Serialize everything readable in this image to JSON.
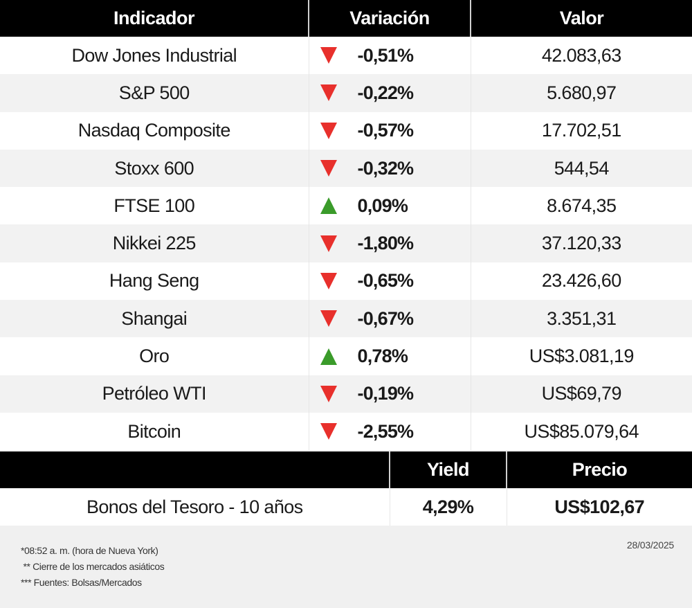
{
  "main_table": {
    "headers": {
      "indicator": "Indicador",
      "variation": "Variación",
      "value": "Valor"
    },
    "rows": [
      {
        "name": "Dow Jones Industrial",
        "direction": "down",
        "variation": "-0,51%",
        "value": "42.083,63"
      },
      {
        "name": "S&P 500",
        "direction": "down",
        "variation": "-0,22%",
        "value": "5.680,97"
      },
      {
        "name": "Nasdaq Composite",
        "direction": "down",
        "variation": "-0,57%",
        "value": "17.702,51"
      },
      {
        "name": "Stoxx 600",
        "direction": "down",
        "variation": "-0,32%",
        "value": "544,54"
      },
      {
        "name": "FTSE 100",
        "direction": "up",
        "variation": "0,09%",
        "value": "8.674,35"
      },
      {
        "name": "Nikkei 225",
        "direction": "down",
        "variation": "-1,80%",
        "value": "37.120,33"
      },
      {
        "name": "Hang Seng",
        "direction": "down",
        "variation": "-0,65%",
        "value": "23.426,60"
      },
      {
        "name": "Shangai",
        "direction": "down",
        "variation": "-0,67%",
        "value": "3.351,31"
      },
      {
        "name": "Oro",
        "direction": "up",
        "variation": "0,78%",
        "value": "US$3.081,19"
      },
      {
        "name": "Petróleo WTI",
        "direction": "down",
        "variation": "-0,19%",
        "value": "US$69,79"
      },
      {
        "name": "Bitcoin",
        "direction": "down",
        "variation": "-2,55%",
        "value": "US$85.079,64"
      }
    ]
  },
  "bond_table": {
    "headers": {
      "name": "",
      "yield": "Yield",
      "price": "Precio"
    },
    "row": {
      "name": "Bonos del Tesoro - 10 años",
      "yield": "4,29%",
      "price": "US$102,67"
    }
  },
  "footer": {
    "notes": [
      "*08:52 a. m. (hora de Nueva York)",
      " ** Cierre de los mercados asiáticos",
      "*** Fuentes: Bolsas/Mercados"
    ],
    "date": "28/03/2025"
  },
  "colors": {
    "header_bg": "#000000",
    "down": "#e8302c",
    "up": "#3a9b2a",
    "row_alt": "#f2f2f2",
    "footer_bg": "#f0f0f0"
  }
}
